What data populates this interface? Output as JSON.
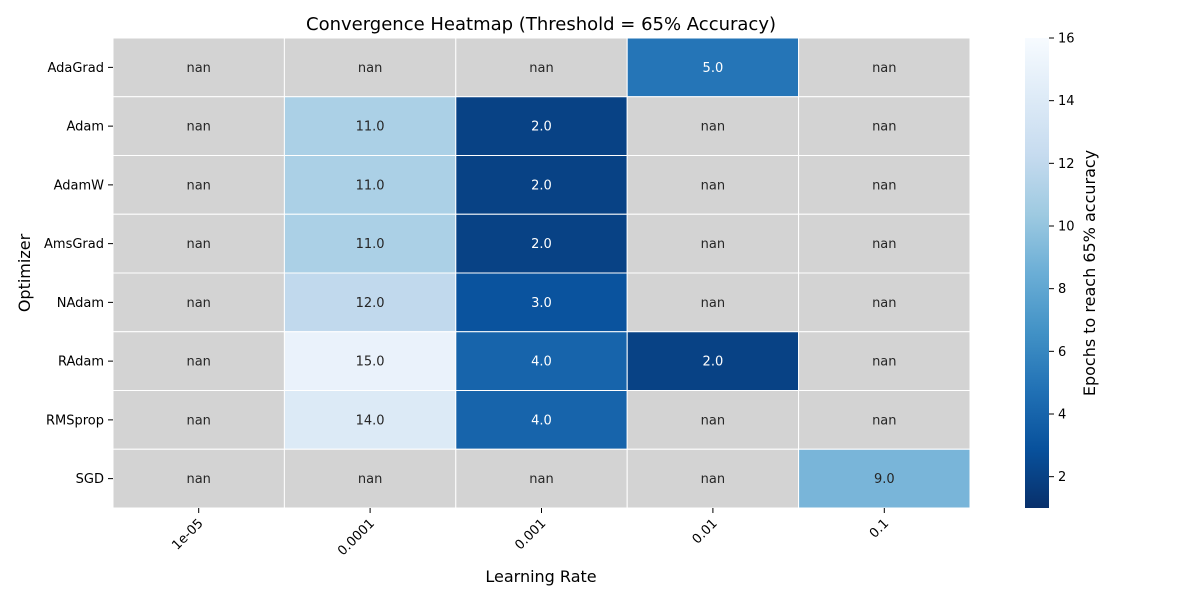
{
  "chart_data": {
    "type": "heatmap",
    "title": "Convergence Heatmap (Threshold = 65% Accuracy)",
    "xlabel": "Learning Rate",
    "ylabel": "Optimizer",
    "x_categories": [
      "1e-05",
      "0.0001",
      "0.001",
      "0.01",
      "0.1"
    ],
    "y_categories": [
      "AdaGrad",
      "Adam",
      "AdamW",
      "AmsGrad",
      "NAdam",
      "RAdam",
      "RMSprop",
      "SGD"
    ],
    "values": [
      [
        null,
        null,
        null,
        5.0,
        null
      ],
      [
        null,
        11.0,
        2.0,
        null,
        null
      ],
      [
        null,
        11.0,
        2.0,
        null,
        null
      ],
      [
        null,
        11.0,
        2.0,
        null,
        null
      ],
      [
        null,
        12.0,
        3.0,
        null,
        null
      ],
      [
        null,
        15.0,
        4.0,
        2.0,
        null
      ],
      [
        null,
        14.0,
        4.0,
        null,
        null
      ],
      [
        null,
        null,
        null,
        null,
        9.0
      ]
    ],
    "missing_label": "nan",
    "colorbar": {
      "label": "Epochs to reach 65% accuracy",
      "range": [
        1,
        16
      ],
      "ticks": [
        2,
        4,
        6,
        8,
        10,
        12,
        14,
        16
      ],
      "colormap": "Blues_r"
    },
    "missing_color": "#d3d3d3"
  }
}
